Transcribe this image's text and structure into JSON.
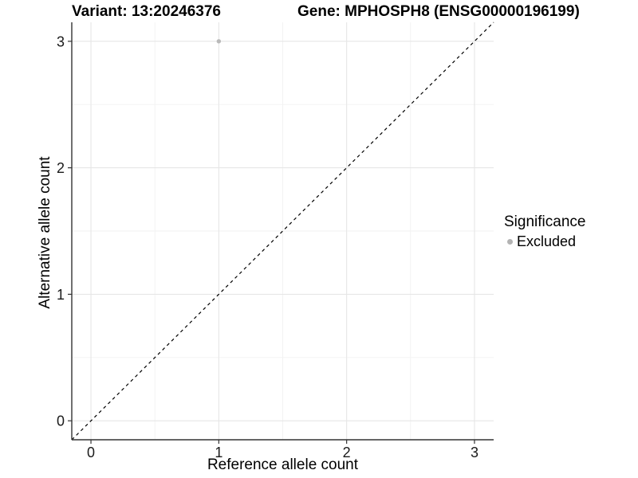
{
  "chart_data": {
    "type": "scatter",
    "title_left": "Variant: 13:20246376",
    "title_right": "Gene: MPHOSPH8 (ENSG00000196199)",
    "xlabel": "Reference allele count",
    "ylabel": "Alternative allele count",
    "xlim": [
      -0.15,
      3.15
    ],
    "ylim": [
      -0.15,
      3.15
    ],
    "xticks": [
      0,
      1,
      2,
      3
    ],
    "yticks": [
      0,
      1,
      2,
      3
    ],
    "xminor": [
      0.5,
      1.5,
      2.5
    ],
    "yminor": [
      0.5,
      1.5,
      2.5
    ],
    "grid": "major and minor, light grey on white",
    "legend_position": "right",
    "legend": {
      "title": "Significance",
      "items": [
        {
          "label": "Excluded",
          "color": "#b3b3b3"
        }
      ]
    },
    "series": [
      {
        "name": "Excluded",
        "color": "#b9b9b9",
        "points": [
          {
            "x": 1,
            "y": 3
          }
        ]
      }
    ],
    "reference_line": {
      "type": "identity y=x",
      "style": "dashed",
      "color": "#000000"
    },
    "colors": {
      "grid_major": "#e6e6e6",
      "grid_minor": "#f2f2f2",
      "axis_line": "#333333",
      "tick_mark": "#333333",
      "tick_label": "#1a1a1a",
      "background": "#ffffff"
    }
  }
}
